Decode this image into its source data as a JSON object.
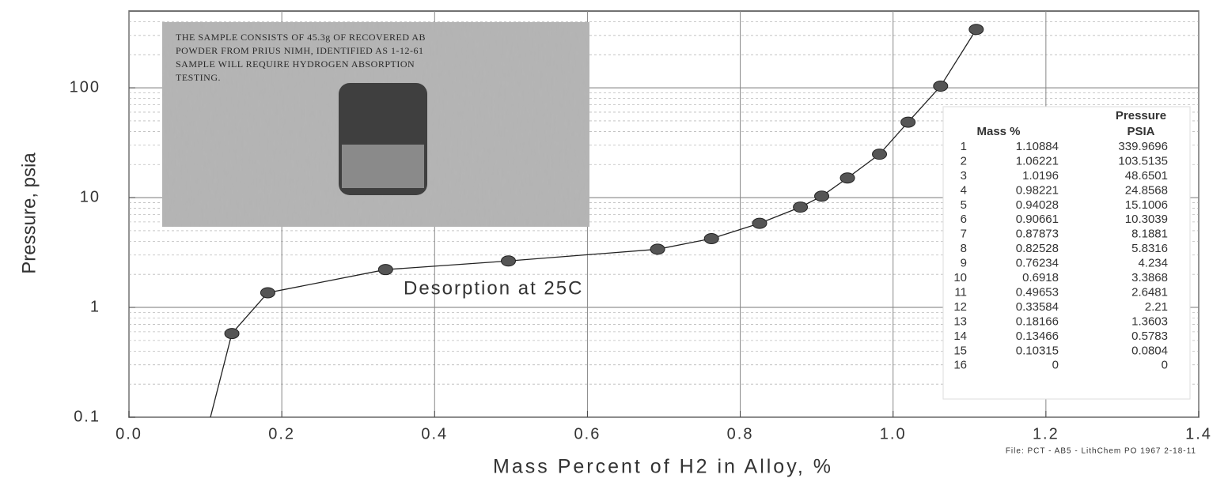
{
  "chart_data": {
    "type": "line",
    "y_label": "Pressure, psia",
    "x_label": "Mass Percent of H2 in Alloy, %",
    "annotation": "Desorption at 25C",
    "footnote": "File: PCT - AB5 - LithChem PO 1967  2-18-11",
    "photo_caption": [
      "THE SAMPLE CONSISTS OF 45.3g OF RECOVERED AB",
      "POWDER FROM PRIUS NIMH, IDENTIFIED AS 1-12-61",
      "SAMPLE WILL REQUIRE HYDROGEN ABSORPTION",
      "TESTING."
    ],
    "x": [
      1.10884,
      1.06221,
      1.0196,
      0.98221,
      0.94028,
      0.90661,
      0.87873,
      0.82528,
      0.76234,
      0.6918,
      0.49653,
      0.33584,
      0.18166,
      0.13466,
      0.10315,
      0
    ],
    "series": [
      {
        "color": "#555555",
        "values": [
          339.9696,
          103.5135,
          48.6501,
          24.8568,
          15.1006,
          10.3039,
          8.1881,
          5.8316,
          4.234,
          3.3868,
          2.6481,
          2.21,
          1.3603,
          0.5783,
          0.0804,
          0
        ]
      }
    ],
    "xlim": [
      0,
      1.4
    ],
    "xticks": [
      {
        "value": 0,
        "label": "0.0"
      },
      0.2,
      0.4,
      0.6,
      0.8,
      {
        "value": 1,
        "label": "1.0"
      },
      1.2,
      1.4
    ],
    "ylim": [
      0.1,
      500
    ],
    "yticks": [
      0.1,
      1,
      10,
      100
    ],
    "y_log": true,
    "grid": true,
    "minor_grid": true,
    "table": {
      "mass_header": "Mass %",
      "pressure_header": [
        "Pressure",
        "PSIA"
      ],
      "rows": [
        1,
        2,
        3,
        4,
        5,
        6,
        7,
        8,
        9,
        10,
        11,
        12,
        13,
        14,
        15,
        16
      ]
    }
  }
}
